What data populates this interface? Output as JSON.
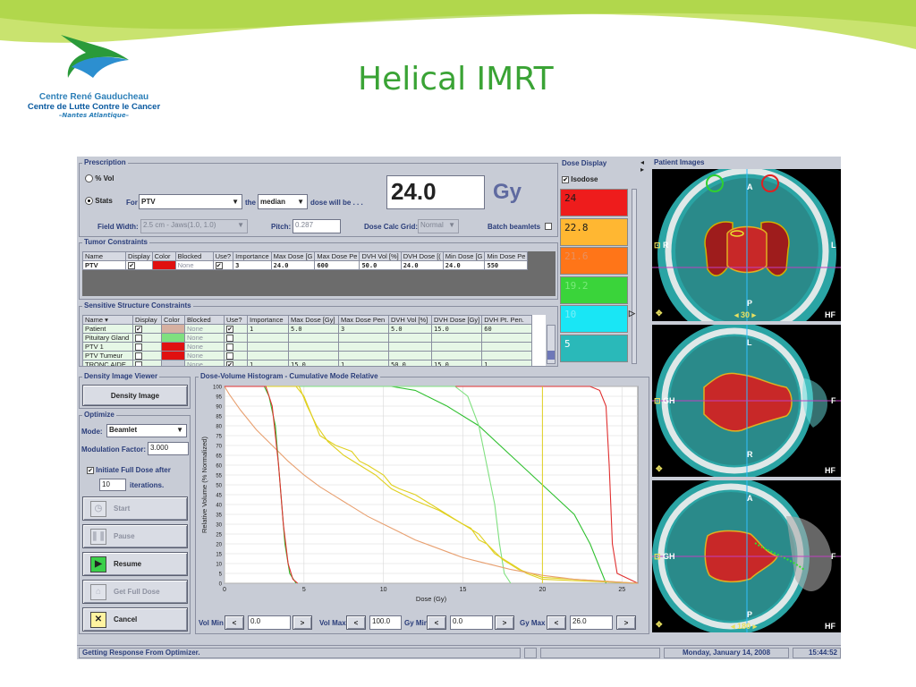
{
  "slide": {
    "title": "Helical IMRT",
    "logo": {
      "line1": "Centre René Gauducheau",
      "line2": "Centre de Lutte Contre le Cancer",
      "line3": "–Nantes Atlantique–"
    }
  },
  "prescription": {
    "label": "Prescription",
    "pct_vol": "% Vol",
    "stats": "Stats",
    "for": "For",
    "structure": "PTV",
    "the": "the",
    "stat_type": "median",
    "dose_will_be": "dose will be . . .",
    "dose_value": "24.0",
    "dose_unit": "Gy",
    "field_width_label": "Field Width:",
    "field_width_value": "2.5 cm - Jaws(1.0, 1.0)",
    "pitch_label": "Pitch:",
    "pitch_value": "0.287",
    "dose_calc_grid_label": "Dose Calc Grid:",
    "dose_calc_grid_value": "Normal",
    "batch_beamlets": "Batch beamlets"
  },
  "tumor_constraints": {
    "label": "Tumor Constraints",
    "columns": [
      "Name",
      "Display",
      "Color",
      "Blocked",
      "Use?",
      "Importance",
      "Max Dose [G",
      "Max Dose Pe",
      "DVH Vol [%]",
      "DVH Dose [(",
      "Min Dose [G",
      "Min Dose Pe"
    ],
    "rows": [
      {
        "name": "PTV",
        "blocked": "None",
        "importance": "3",
        "max_dose": "24.0",
        "max_pen": "600",
        "dvh_vol": "50.0",
        "dvh_dose": "24.0",
        "min_dose": "24.0",
        "min_pen": "550",
        "color": "#e01010"
      }
    ]
  },
  "sensitive_constraints": {
    "label": "Sensitive Structure Constraints",
    "columns": [
      "Name ▾",
      "Display",
      "Color",
      "Blocked",
      "Use?",
      "Importance",
      "Max Dose [Gy]",
      "Max Dose Pen",
      "DVH Vol [%]",
      "DVH Dose [Gy]",
      "DVH Pt. Pen."
    ],
    "rows": [
      {
        "name": "Patient",
        "blocked": "None",
        "importance": "1",
        "max_dose": "5.0",
        "max_pen": "3",
        "dvh_vol": "5.0",
        "dvh_dose": "15.0",
        "dvh_pen": "60",
        "color": "#d6b0a0"
      },
      {
        "name": "Pituitary Gland",
        "blocked": "None",
        "importance": "",
        "max_dose": "",
        "max_pen": "",
        "dvh_vol": "",
        "dvh_dose": "",
        "dvh_pen": "",
        "color": "#7fe07f"
      },
      {
        "name": "PTV 1",
        "blocked": "None",
        "importance": "",
        "max_dose": "",
        "max_pen": "",
        "dvh_vol": "",
        "dvh_dose": "",
        "dvh_pen": "",
        "color": "#e01010"
      },
      {
        "name": "PTV Tumeur",
        "blocked": "None",
        "importance": "",
        "max_dose": "",
        "max_pen": "",
        "dvh_vol": "",
        "dvh_dose": "",
        "dvh_pen": "",
        "color": "#e01010"
      },
      {
        "name": "TRONC AIDE",
        "blocked": "None",
        "importance": "1",
        "max_dose": "15.0",
        "max_pen": "1",
        "dvh_vol": "50.0",
        "dvh_dose": "15.0",
        "dvh_pen": "1",
        "color": "#c8ccd6"
      }
    ]
  },
  "dose_display": {
    "label": "Dose Display",
    "isodose": "Isodose",
    "levels": [
      {
        "value": "24",
        "color": "#ee1c1c",
        "text": "#1a1a1a"
      },
      {
        "value": "22.8",
        "color": "#ffb732",
        "text": "#1a1a1a"
      },
      {
        "value": "21.6",
        "color": "#ff7518",
        "text": "#e89060"
      },
      {
        "value": "19.2",
        "color": "#3ad43a",
        "text": "#7aea7a"
      },
      {
        "value": "10",
        "color": "#19e6f5",
        "text": "#7aeef8"
      },
      {
        "value": "5",
        "color": "#2ab9b9",
        "text": "#ffffff"
      }
    ]
  },
  "density_viewer": {
    "label": "Density Image Viewer",
    "button": "Density Image"
  },
  "optimize": {
    "label": "Optimize",
    "mode_label": "Mode:",
    "mode_value": "Beamlet",
    "modulation_label": "Modulation Factor:",
    "modulation_value": "3.000",
    "initiate_label": "Initiate Full Dose after",
    "iterations_value": "10",
    "iterations_label": "iterations.",
    "buttons": {
      "start": "Start",
      "pause": "Pause",
      "resume": "Resume",
      "get_full_dose": "Get Full Dose",
      "cancel": "Cancel"
    }
  },
  "dvh": {
    "label": "Dose-Volume Histogram - Cumulative Mode Relative",
    "controls": {
      "vol_min_label": "Vol Min",
      "vol_min": "0.0",
      "vol_max_label": "Vol Max",
      "vol_max": "100.0",
      "gy_min_label": "Gy Min",
      "gy_min": "0.0",
      "gy_max_label": "Gy Max",
      "gy_max": "26.0",
      "dec": "<",
      "inc": ">"
    }
  },
  "chart_data": {
    "type": "line",
    "title": "",
    "xlabel": "Dose (Gy)",
    "ylabel": "Relative Volume (% Normalized)",
    "xlim": [
      0,
      26
    ],
    "ylim": [
      0,
      100
    ],
    "x_ticks": [
      0,
      5,
      10,
      15,
      20,
      25
    ],
    "y_ticks": [
      0,
      5,
      10,
      15,
      20,
      25,
      30,
      35,
      40,
      45,
      50,
      55,
      60,
      65,
      70,
      75,
      80,
      85,
      90,
      95,
      100
    ],
    "series": [
      {
        "color": "#e03030",
        "points": [
          [
            0,
            100
          ],
          [
            23,
            100
          ],
          [
            23.6,
            98
          ],
          [
            24,
            90
          ],
          [
            24.2,
            60
          ],
          [
            24.4,
            20
          ],
          [
            24.7,
            5
          ],
          [
            26,
            0
          ]
        ]
      },
      {
        "color": "#30c030",
        "points": [
          [
            0,
            100
          ],
          [
            10.5,
            100
          ],
          [
            12,
            98
          ],
          [
            14,
            90
          ],
          [
            16,
            80
          ],
          [
            18,
            65
          ],
          [
            20,
            50
          ],
          [
            22,
            35
          ],
          [
            23,
            20
          ],
          [
            23.6,
            8
          ],
          [
            24,
            0
          ]
        ]
      },
      {
        "color": "#80e080",
        "points": [
          [
            0,
            100
          ],
          [
            14.5,
            100
          ],
          [
            15.3,
            95
          ],
          [
            16,
            80
          ],
          [
            16.5,
            60
          ],
          [
            17,
            40
          ],
          [
            17.3,
            20
          ],
          [
            17.6,
            5
          ],
          [
            18,
            0
          ]
        ]
      },
      {
        "color": "#e0d020",
        "points": [
          [
            0,
            100
          ],
          [
            4.5,
            100
          ],
          [
            5,
            95
          ],
          [
            5.5,
            85
          ],
          [
            6,
            75
          ],
          [
            7,
            70
          ],
          [
            8,
            67
          ],
          [
            8.5,
            62
          ],
          [
            9,
            60
          ],
          [
            10,
            55
          ],
          [
            10.5,
            50
          ],
          [
            11,
            48
          ],
          [
            12,
            45
          ],
          [
            13,
            40
          ],
          [
            14,
            35
          ],
          [
            15,
            30
          ],
          [
            15.5,
            28
          ],
          [
            16,
            22
          ],
          [
            16.5,
            20
          ],
          [
            17,
            15
          ],
          [
            18,
            10
          ],
          [
            19,
            5
          ],
          [
            20,
            2
          ],
          [
            26,
            0
          ]
        ]
      },
      {
        "color": "#e0d020",
        "points": [
          [
            0,
            100
          ],
          [
            4.7,
            100
          ],
          [
            5.2,
            90
          ],
          [
            5.8,
            80
          ],
          [
            6.5,
            72
          ],
          [
            7.5,
            65
          ],
          [
            8.5,
            60
          ],
          [
            9.5,
            55
          ],
          [
            10.5,
            48
          ],
          [
            12,
            42
          ],
          [
            13.5,
            37
          ],
          [
            15,
            30
          ],
          [
            16,
            25
          ],
          [
            16.5,
            20
          ],
          [
            17.5,
            12
          ],
          [
            18.5,
            7
          ],
          [
            20,
            3
          ],
          [
            26,
            0
          ]
        ]
      },
      {
        "color": "#e8a070",
        "points": [
          [
            0,
            100
          ],
          [
            0.3,
            96
          ],
          [
            1,
            88
          ],
          [
            2,
            78
          ],
          [
            3,
            70
          ],
          [
            4,
            62
          ],
          [
            5,
            55
          ],
          [
            6,
            49
          ],
          [
            7,
            44
          ],
          [
            8,
            39
          ],
          [
            9,
            34
          ],
          [
            10,
            30
          ],
          [
            11,
            26
          ],
          [
            12,
            22
          ],
          [
            13,
            19
          ],
          [
            14,
            16
          ],
          [
            15,
            13
          ],
          [
            16,
            11
          ],
          [
            17,
            9
          ],
          [
            18,
            7
          ],
          [
            20,
            4
          ],
          [
            22,
            2
          ],
          [
            24,
            1
          ],
          [
            26,
            0
          ]
        ]
      },
      {
        "color": "#30c030",
        "points": [
          [
            0,
            100
          ],
          [
            2.5,
            100
          ],
          [
            2.8,
            95
          ],
          [
            3.2,
            80
          ],
          [
            3.5,
            50
          ],
          [
            3.8,
            20
          ],
          [
            4.1,
            5
          ],
          [
            4.5,
            0
          ]
        ]
      },
      {
        "color": "#e03030",
        "points": [
          [
            0,
            100
          ],
          [
            2.6,
            100
          ],
          [
            3,
            90
          ],
          [
            3.4,
            60
          ],
          [
            3.7,
            30
          ],
          [
            4,
            10
          ],
          [
            4.3,
            2
          ],
          [
            4.6,
            0
          ]
        ]
      }
    ]
  },
  "patient_images": {
    "label": "Patient Images",
    "views": [
      {
        "top": "A",
        "left": "R",
        "right": "L",
        "bottom": "P",
        "corner": "HF",
        "slice": "30"
      },
      {
        "top": "L",
        "left": "GH",
        "right": "F",
        "bottom": "R",
        "corner": "HF",
        "slice": ""
      },
      {
        "top": "A",
        "left": "GH",
        "right": "F",
        "bottom": "P",
        "corner": "HF",
        "slice": "180"
      }
    ]
  },
  "status": {
    "message": "Getting Response From Optimizer.",
    "date": "Monday, January 14, 2008",
    "time": "15:44:52"
  }
}
